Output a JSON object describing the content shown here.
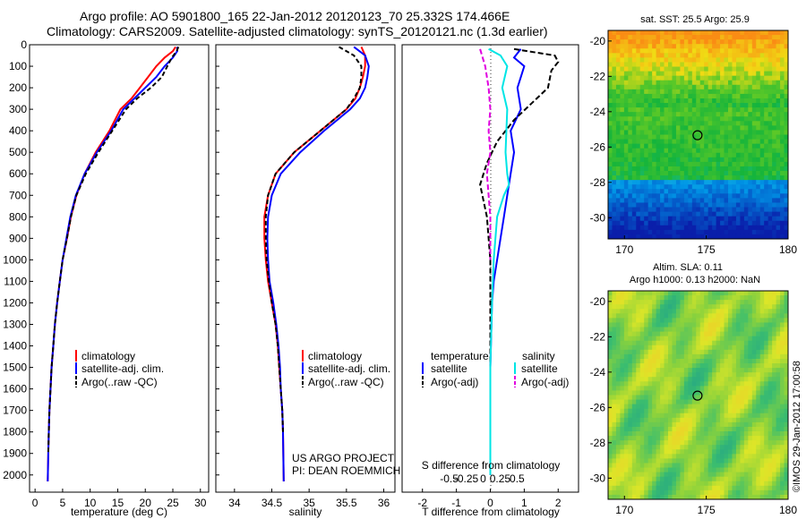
{
  "header": {
    "line1": "Argo profile: AO 5901800_165 22-Jan-2012 20120123_70 25.332S 174.466E",
    "line2": "Climatology: CARS2009. Satellite-adjusted climatology: synTS_20120121.nc (1.3d earlier)"
  },
  "credit": "©IMOS 29-Jan-2012 17:00:58",
  "project": {
    "line1": "US ARGO PROJECT",
    "line2": "PI: DEAN ROEMMICH"
  },
  "colors": {
    "climatology": "#ff0000",
    "satellite": "#0000ff",
    "argo": "#000000",
    "sat_diff": "#00e5e5",
    "argo_diff": "#e000e0"
  },
  "chart_data": [
    {
      "type": "line",
      "panel": "temperature",
      "xlabel": "temperature (deg C)",
      "xlim": [
        -1,
        31.5
      ],
      "xticks": [
        0,
        5,
        10,
        15,
        20,
        25,
        30
      ],
      "ylim": [
        2080,
        0
      ],
      "yticks": [
        0,
        100,
        200,
        300,
        400,
        500,
        600,
        700,
        800,
        900,
        1000,
        1100,
        1200,
        1300,
        1400,
        1500,
        1600,
        1700,
        1800,
        1900,
        2000
      ],
      "legend": [
        "climatology",
        "satellite-adj. clim.",
        "Argo(..raw -QC)"
      ],
      "series": [
        {
          "name": "climatology",
          "color": "#ff0000",
          "dash": "",
          "x": [
            25.5,
            25.0,
            23.5,
            22.0,
            20.5,
            19.0,
            17.5,
            15.5,
            13.5,
            11.0,
            9.0,
            7.5,
            6.5,
            5.8,
            5.0,
            4.5,
            4.0,
            3.6,
            3.3,
            3.0,
            2.8,
            2.6,
            2.5,
            2.4,
            2.3
          ],
          "y": [
            10,
            30,
            60,
            100,
            150,
            200,
            250,
            300,
            400,
            500,
            600,
            700,
            800,
            900,
            1000,
            1100,
            1200,
            1300,
            1400,
            1500,
            1600,
            1700,
            1800,
            1900,
            2030
          ]
        },
        {
          "name": "satellite-adj. clim.",
          "color": "#0000ff",
          "dash": "",
          "x": [
            25.8,
            25.8,
            25.0,
            23.5,
            22.0,
            20.0,
            18.0,
            16.0,
            13.8,
            11.2,
            9.0,
            7.4,
            6.4,
            5.7,
            5.0,
            4.5,
            4.0,
            3.6,
            3.3,
            3.0,
            2.8,
            2.6,
            2.5,
            2.4,
            2.3
          ],
          "y": [
            10,
            30,
            60,
            100,
            150,
            200,
            250,
            300,
            400,
            500,
            600,
            700,
            800,
            900,
            1000,
            1100,
            1200,
            1300,
            1400,
            1500,
            1600,
            1700,
            1800,
            1900,
            2030
          ]
        },
        {
          "name": "Argo(..raw -QC)",
          "color": "#000000",
          "dash": "5,3",
          "x": [
            26.0,
            25.7,
            24.8,
            24.0,
            23.0,
            21.0,
            18.5,
            16.5,
            14.0,
            11.5,
            9.2,
            7.5,
            6.5,
            5.8,
            5.0,
            4.5,
            4.0,
            3.6,
            3.3,
            3.0,
            2.8,
            2.6,
            2.5,
            2.4
          ],
          "y": [
            10,
            30,
            60,
            100,
            150,
            200,
            250,
            300,
            400,
            500,
            600,
            700,
            800,
            900,
            1000,
            1100,
            1200,
            1300,
            1400,
            1500,
            1600,
            1700,
            1800,
            1900
          ]
        }
      ]
    },
    {
      "type": "line",
      "panel": "salinity",
      "xlabel": "salinity",
      "xlim": [
        33.75,
        36.15
      ],
      "xticks": [
        34,
        34.5,
        35,
        35.5,
        36
      ],
      "ylim": [
        2080,
        0
      ],
      "legend": [
        "climatology",
        "satellite-adj. clim.",
        "Argo(..raw -QC)"
      ],
      "series": [
        {
          "name": "climatology",
          "color": "#ff0000",
          "dash": "",
          "x": [
            35.7,
            35.75,
            35.75,
            35.72,
            35.68,
            35.62,
            35.5,
            35.15,
            34.8,
            34.55,
            34.45,
            34.4,
            34.4,
            34.42,
            34.45,
            34.5,
            34.55,
            34.58,
            34.6,
            34.62,
            34.64,
            34.65,
            34.66
          ],
          "y": [
            10,
            50,
            100,
            150,
            200,
            250,
            300,
            400,
            500,
            600,
            700,
            800,
            900,
            1000,
            1100,
            1200,
            1300,
            1400,
            1500,
            1600,
            1700,
            1800,
            2030
          ]
        },
        {
          "name": "satellite-adj. clim.",
          "color": "#0000ff",
          "dash": "",
          "x": [
            35.6,
            35.75,
            35.8,
            35.78,
            35.75,
            35.68,
            35.55,
            35.2,
            34.88,
            34.62,
            34.5,
            34.45,
            34.44,
            34.45,
            34.47,
            34.52,
            34.56,
            34.59,
            34.61,
            34.62,
            34.64,
            34.65,
            34.66
          ],
          "y": [
            10,
            50,
            100,
            150,
            200,
            250,
            300,
            400,
            500,
            600,
            700,
            800,
            900,
            1000,
            1100,
            1200,
            1300,
            1400,
            1500,
            1600,
            1700,
            1800,
            2030
          ]
        },
        {
          "name": "Argo(..raw -QC)",
          "color": "#000000",
          "dash": "5,3",
          "x": [
            35.4,
            35.6,
            35.7,
            35.7,
            35.68,
            35.6,
            35.5,
            35.15,
            34.8,
            34.55,
            34.45,
            34.42,
            34.42,
            34.43,
            34.46,
            34.5,
            34.55,
            34.58,
            34.6,
            34.62,
            34.64,
            34.65
          ],
          "y": [
            10,
            50,
            100,
            150,
            200,
            250,
            300,
            400,
            500,
            600,
            700,
            800,
            900,
            1000,
            1100,
            1200,
            1300,
            1400,
            1500,
            1600,
            1700,
            1800
          ]
        }
      ]
    },
    {
      "type": "line",
      "panel": "difference",
      "xlabel": "T difference from climatology",
      "xlabel_top": "S difference from climatology",
      "xlim": [
        -2.6,
        2.6
      ],
      "xticks": [
        -2,
        -1,
        0,
        1,
        2
      ],
      "xticks_s": [
        "-0.5",
        "-0.25",
        "0",
        "0.25",
        "0.5"
      ],
      "ylim": [
        2080,
        0
      ],
      "legend_titles": [
        "temperature",
        "salinity"
      ],
      "legend": [
        "satellite",
        "Argo(-adj)",
        "satellite",
        "Argo(-adj)"
      ],
      "series": [
        {
          "name": "temperature satellite",
          "color": "#0000ff",
          "dash": "",
          "x": [
            0.9,
            0.7,
            1.0,
            0.9,
            0.8,
            0.9,
            0.6,
            0.7,
            0.6,
            0.5,
            0.4,
            0.3,
            0.2,
            0.1,
            0.05,
            0.0,
            0.0
          ],
          "y": [
            20,
            60,
            100,
            150,
            200,
            300,
            400,
            500,
            600,
            700,
            800,
            900,
            1000,
            1100,
            1200,
            1500,
            2000
          ]
        },
        {
          "name": "temperature Argo(-adj)",
          "color": "#000000",
          "dash": "6,3",
          "x": [
            0.7,
            1.9,
            2.0,
            1.8,
            1.7,
            0.7,
            0.2,
            -0.1,
            -0.3,
            -0.1,
            0.0,
            0.0,
            0.0,
            0.0
          ],
          "y": [
            20,
            50,
            80,
            120,
            200,
            350,
            450,
            550,
            650,
            800,
            1000,
            1200,
            1500,
            1900
          ]
        },
        {
          "name": "salinity satellite",
          "color": "#00e5e5",
          "dash": "",
          "x": [
            -0.05,
            0.3,
            0.5,
            0.35,
            0.5,
            0.45,
            0.5,
            0.55,
            0.4,
            0.2,
            0.1,
            0.05,
            0.0,
            0.0
          ],
          "y": [
            20,
            50,
            100,
            200,
            300,
            500,
            600,
            650,
            700,
            800,
            1000,
            1200,
            1500,
            2000
          ]
        },
        {
          "name": "salinity Argo(-adj)",
          "color": "#e000e0",
          "dash": "6,3",
          "x": [
            -0.3,
            -0.15,
            -0.05,
            0.0,
            -0.05,
            0.0,
            -0.1,
            -0.05,
            0.0,
            0.0
          ],
          "y": [
            20,
            100,
            200,
            300,
            400,
            500,
            600,
            700,
            800,
            1000
          ]
        }
      ]
    },
    {
      "type": "heatmap",
      "panel": "sst-map",
      "title": "sat. SST: 25.5 Argo: 25.9",
      "xlim": [
        169,
        180
      ],
      "ylim": [
        -31.2,
        -19.4
      ],
      "xticks": [
        170,
        175,
        180
      ],
      "yticks": [
        -20,
        -22,
        -24,
        -26,
        -28,
        -30
      ],
      "marker": [
        174.466,
        -25.332
      ]
    },
    {
      "type": "heatmap",
      "panel": "sla-map",
      "title_line1": "Altim. SLA: 0.11",
      "title_line2": "Argo h1000: 0.13 h2000: NaN",
      "xlim": [
        169,
        180
      ],
      "ylim": [
        -31.2,
        -19.4
      ],
      "xticks": [
        170,
        175,
        180
      ],
      "yticks": [
        -20,
        -22,
        -24,
        -26,
        -28,
        -30
      ],
      "marker": [
        174.466,
        -25.332
      ]
    }
  ]
}
